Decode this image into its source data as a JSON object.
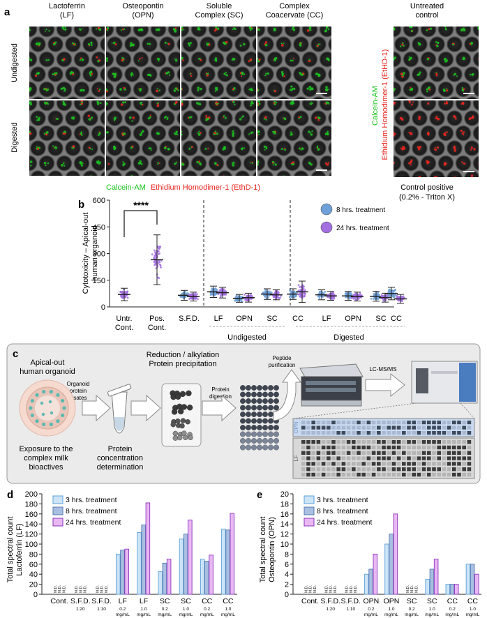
{
  "panel_a": {
    "letter": "a",
    "columns": [
      "Lactoferrin\n(LF)",
      "Osteopontin\n(OPN)",
      "Soluble\nComplex (SC)",
      "Complex\nCoacervate (CC)",
      "Untreated\ncontrol"
    ],
    "rows": [
      "Undigested",
      "Digested"
    ],
    "stain_green": "Calcein-AM",
    "stain_red": "Ethidium Homodimer-1 (EthD-1)",
    "side_green": "Calcein-AM",
    "side_red": "Ethidium Homodimer-1 (EtHD-1)",
    "control_positive": "Control positive",
    "control_positive_sub": "(0.2% - Triton X)",
    "colors": {
      "green": "#19c21e",
      "red": "#e8261f",
      "well": "#5a5a5a"
    }
  },
  "panel_b": {
    "letter": "b",
    "significance": "****",
    "group_undigested": "Undigested",
    "group_digested": "Digested",
    "chart_data": {
      "type": "scatter",
      "ylabel": "Cytotoxicity – Apical-out\nhuman organoid",
      "ylim": [
        0,
        600
      ],
      "yticks": [
        0,
        150,
        300,
        450,
        600
      ],
      "categories": [
        "Untr.\nCont.",
        "Pos.\nCont.",
        "S.F.D.",
        "LF",
        "OPN",
        "SC",
        "CC",
        "LF",
        "OPN",
        "SC",
        "CC"
      ],
      "series": [
        {
          "name": "8 hrs. treatment",
          "color": "#6f9fd8",
          "means": [
            null,
            null,
            65,
            85,
            48,
            72,
            72,
            68,
            62,
            60,
            75
          ],
          "sd": [
            null,
            null,
            28,
            32,
            22,
            30,
            30,
            28,
            25,
            28,
            35
          ]
        },
        {
          "name": "24 hrs. treatment",
          "color": "#a36ee0",
          "means": [
            70,
            265,
            58,
            80,
            52,
            68,
            85,
            62,
            58,
            52,
            45
          ],
          "sd": [
            35,
            140,
            25,
            30,
            25,
            28,
            60,
            25,
            25,
            25,
            25
          ]
        }
      ]
    }
  },
  "panel_c": {
    "letter": "c",
    "organoid_title": "Apical-out\nhuman organoid",
    "lysates": "Organoid\nprotein\nlysates",
    "exposure": "Exposure to the\ncomplex milk\nbioactives",
    "reduction": "Reduction / alkylation\nProtein precipitation",
    "concentration": "Protein\nconcentration\ndetermination",
    "digestion": "Protein\ndigestion",
    "purification": "Peptide\npurification",
    "lcms": "LC-MS/MS",
    "opn": "OPN",
    "lf": "LF"
  },
  "panel_d": {
    "letter": "d",
    "nd": "N.D.",
    "chart_data": {
      "type": "bar",
      "ylabel": "Total spectral count\nLactoferrin (LF)",
      "ylim": [
        0,
        200
      ],
      "yticks": [
        0,
        20,
        40,
        60,
        80,
        100,
        120,
        140,
        160,
        180,
        200
      ],
      "categories": [
        "Cont.",
        "S.F.D.",
        "S.F.D.",
        "LF",
        "LF",
        "SC",
        "SC",
        "CC",
        "CC"
      ],
      "sublabels": [
        "",
        "1:20",
        "1:10",
        "0.2\nmg/mL",
        "1.0\nmg/mL",
        "0.2\nmg/mL",
        "1.0\nmg/mL",
        "0.2\nmg/mL",
        "1.0\nmg/mL"
      ],
      "series": [
        {
          "name": "3 hrs. treatment",
          "values": [
            null,
            null,
            null,
            80,
            123,
            45,
            110,
            70,
            130
          ]
        },
        {
          "name": "8 hrs. treatment",
          "values": [
            null,
            null,
            null,
            88,
            138,
            62,
            120,
            66,
            128
          ]
        },
        {
          "name": "24 hrs. treatment",
          "values": [
            null,
            null,
            null,
            90,
            182,
            70,
            148,
            78,
            161
          ]
        }
      ]
    }
  },
  "panel_e": {
    "letter": "e",
    "nd": "N.D.",
    "chart_data": {
      "type": "bar",
      "ylabel": "Total spectral count\nOsteopontin (OPN)",
      "ylim": [
        0,
        20
      ],
      "yticks": [
        0,
        2,
        4,
        6,
        8,
        10,
        12,
        14,
        16,
        18,
        20
      ],
      "categories": [
        "Cont.",
        "S.F.D.",
        "S.F.D.",
        "OPN",
        "OPN",
        "SC",
        "SC",
        "CC",
        "CC"
      ],
      "sublabels": [
        "",
        "1:20",
        "1:10",
        "0.2\nmg/mL",
        "1.0\nmg/mL",
        "0.2\nmg/mL",
        "1.0\nmg/mL",
        "0.2\nmg/mL",
        "1.0\nmg/mL"
      ],
      "series": [
        {
          "name": "3 hrs. treatment",
          "values": [
            null,
            null,
            null,
            4,
            10,
            null,
            3,
            2,
            6
          ]
        },
        {
          "name": "8 hrs. treatment",
          "values": [
            null,
            null,
            null,
            5,
            12,
            null,
            5,
            2,
            6
          ]
        },
        {
          "name": "24 hrs. treatment",
          "values": [
            null,
            null,
            null,
            8,
            16,
            null,
            7,
            2,
            4
          ]
        }
      ]
    }
  },
  "bar_colors": {
    "fill": [
      "#cde4f7",
      "#a9bfe0",
      "#e9b8f2"
    ],
    "stroke": [
      "#5aa0d8",
      "#5779b3",
      "#8a33c0"
    ]
  }
}
